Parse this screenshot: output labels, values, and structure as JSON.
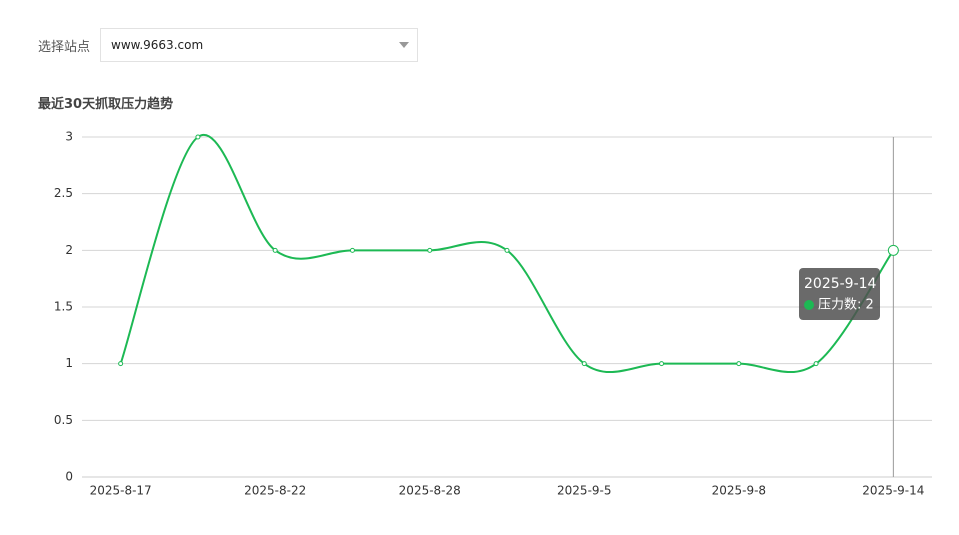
{
  "filter": {
    "label": "选择站点",
    "value": "www.9663.com"
  },
  "chart_data": {
    "type": "line",
    "title": "最近30天抓取压力趋势",
    "categories": [
      "2025-8-17",
      null,
      "2025-8-22",
      null,
      "2025-8-28",
      null,
      "2025-9-5",
      null,
      "2025-9-8",
      null,
      "2025-9-14"
    ],
    "series": [
      {
        "name": "压力数",
        "color": "#1db954",
        "values": [
          1,
          3,
          2,
          2,
          2,
          2,
          1,
          1,
          1,
          1,
          2
        ]
      }
    ],
    "ylim": [
      0,
      3
    ],
    "yticks": [
      0,
      0.5,
      1,
      1.5,
      2,
      2.5,
      3
    ],
    "grid": true,
    "smooth": true,
    "tooltip": {
      "title": "2025-9-14",
      "text": "压力数: 2"
    }
  }
}
